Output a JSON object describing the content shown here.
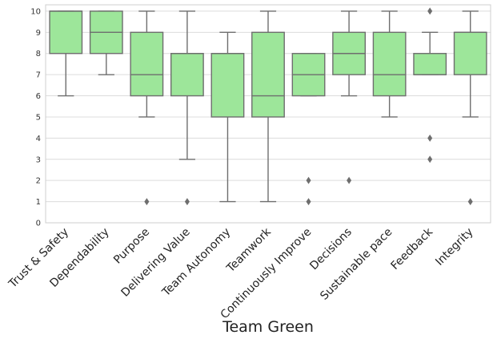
{
  "chart_data": {
    "type": "box",
    "title": "",
    "xlabel": "Team Green",
    "ylabel": "",
    "ylim": [
      0,
      10.3
    ],
    "yticks": [
      0,
      1,
      2,
      3,
      4,
      5,
      6,
      7,
      8,
      9,
      10
    ],
    "grid": true,
    "box_color": "#9de69a",
    "line_color": "#6e6e6e",
    "categories": [
      "Trust & Safety",
      "Dependability",
      "Purpose",
      "Delivering Value",
      "Team Autonomy",
      "Teamwork",
      "Continuously Improve",
      "Decisions",
      "Sustainable pace",
      "Feedback",
      "Integrity"
    ],
    "boxes": [
      {
        "category": "Trust & Safety",
        "whisker_low": 6,
        "q1": 8,
        "median": 10,
        "q3": 10,
        "whisker_high": 10,
        "outliers": []
      },
      {
        "category": "Dependability",
        "whisker_low": 7,
        "q1": 8,
        "median": 9,
        "q3": 10,
        "whisker_high": 10,
        "outliers": []
      },
      {
        "category": "Purpose",
        "whisker_low": 5,
        "q1": 6,
        "median": 7,
        "q3": 9,
        "whisker_high": 10,
        "outliers": [
          1
        ]
      },
      {
        "category": "Delivering Value",
        "whisker_low": 3,
        "q1": 6,
        "median": 8,
        "q3": 8,
        "whisker_high": 10,
        "outliers": [
          1
        ]
      },
      {
        "category": "Team Autonomy",
        "whisker_low": 1,
        "q1": 5,
        "median": 8,
        "q3": 8,
        "whisker_high": 9,
        "outliers": []
      },
      {
        "category": "Teamwork",
        "whisker_low": 1,
        "q1": 5,
        "median": 6,
        "q3": 9,
        "whisker_high": 10,
        "outliers": []
      },
      {
        "category": "Continuously Improve",
        "whisker_low": 6,
        "q1": 6,
        "median": 7,
        "q3": 8,
        "whisker_high": 8,
        "outliers": [
          1,
          2
        ]
      },
      {
        "category": "Decisions",
        "whisker_low": 6,
        "q1": 7,
        "median": 8,
        "q3": 9,
        "whisker_high": 10,
        "outliers": [
          2
        ]
      },
      {
        "category": "Sustainable pace",
        "whisker_low": 5,
        "q1": 6,
        "median": 7,
        "q3": 9,
        "whisker_high": 10,
        "outliers": []
      },
      {
        "category": "Feedback",
        "whisker_low": 7,
        "q1": 7,
        "median": 7,
        "q3": 8,
        "whisker_high": 9,
        "outliers": [
          3,
          4,
          10
        ]
      },
      {
        "category": "Integrity",
        "whisker_low": 5,
        "q1": 7,
        "median": 9,
        "q3": 9,
        "whisker_high": 10,
        "outliers": [
          1
        ]
      }
    ]
  }
}
